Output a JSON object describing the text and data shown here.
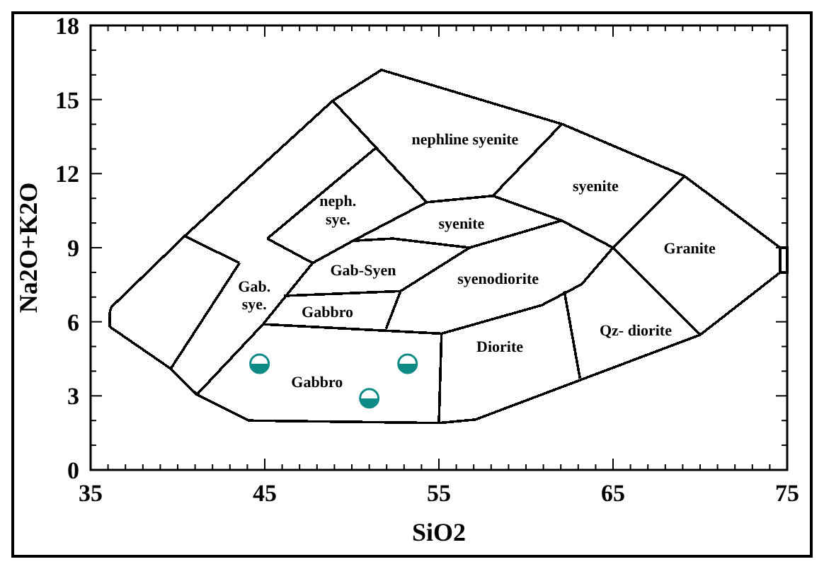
{
  "chart_data": {
    "type": "scatter",
    "xlabel": "SiO2",
    "ylabel": "Na2O+K2O",
    "xlim": [
      35,
      75
    ],
    "ylim": [
      0,
      18
    ],
    "xticks": [
      35,
      {
        "value": 36,
        "label": null
      },
      {
        "value": 37,
        "label": null
      },
      {
        "value": 38,
        "label": null
      },
      {
        "value": 39,
        "label": null
      },
      {
        "value": 40,
        "label": null
      },
      {
        "value": 41,
        "label": null
      },
      {
        "value": 42,
        "label": null
      },
      {
        "value": 43,
        "label": null
      },
      {
        "value": 44,
        "label": null
      },
      45,
      {
        "value": 46,
        "label": null
      },
      {
        "value": 47,
        "label": null
      },
      {
        "value": 48,
        "label": null
      },
      {
        "value": 49,
        "label": null
      },
      {
        "value": 50,
        "label": null
      },
      {
        "value": 51,
        "label": null
      },
      {
        "value": 52,
        "label": null
      },
      {
        "value": 53,
        "label": null
      },
      {
        "value": 54,
        "label": null
      },
      55,
      {
        "value": 56,
        "label": null
      },
      {
        "value": 57,
        "label": null
      },
      {
        "value": 58,
        "label": null
      },
      {
        "value": 59,
        "label": null
      },
      {
        "value": 60,
        "label": null
      },
      {
        "value": 61,
        "label": null
      },
      {
        "value": 62,
        "label": null
      },
      {
        "value": 63,
        "label": null
      },
      {
        "value": 64,
        "label": null
      },
      65,
      {
        "value": 66,
        "label": null
      },
      {
        "value": 67,
        "label": null
      },
      {
        "value": 68,
        "label": null
      },
      {
        "value": 69,
        "label": null
      },
      {
        "value": 70,
        "label": null
      },
      {
        "value": 71,
        "label": null
      },
      {
        "value": 72,
        "label": null
      },
      {
        "value": 73,
        "label": null
      },
      {
        "value": 74,
        "label": null
      },
      75
    ],
    "yticks": [
      0,
      {
        "value": 1,
        "label": null
      },
      {
        "value": 2,
        "label": null
      },
      3,
      {
        "value": 4,
        "label": null
      },
      {
        "value": 5,
        "label": null
      },
      6,
      {
        "value": 7,
        "label": null
      },
      {
        "value": 8,
        "label": null
      },
      9,
      {
        "value": 10,
        "label": null
      },
      {
        "value": 11,
        "label": null
      },
      12,
      {
        "value": 13,
        "label": null
      },
      {
        "value": 14,
        "label": null
      },
      15,
      {
        "value": 16,
        "label": null
      },
      {
        "value": 17,
        "label": null
      },
      18
    ],
    "grid": false,
    "marker": "circle",
    "series": [
      {
        "type": "line",
        "color": "#000000",
        "marker": "none",
        "x": [
          36.1,
          36.2,
          40.4,
          48.9,
          51.7,
          62.1,
          69.1,
          74.6
        ],
        "values": [
          6.4,
          6.6,
          9.47,
          14.95,
          16.2,
          14.0,
          11.9,
          9.0
        ]
      },
      {
        "type": "line",
        "color": "#000000",
        "marker": "none",
        "x": [
          36.1,
          39.6,
          41.1,
          44.1,
          55.0,
          57.1,
          70.0,
          74.6
        ],
        "values": [
          5.8,
          4.1,
          3.05,
          2.0,
          1.9,
          2.04,
          5.47,
          8.0
        ]
      },
      {
        "type": "line",
        "color": "#000000",
        "marker": "none",
        "x": [
          40.4,
          43.55
        ],
        "values": [
          9.47,
          8.38
        ]
      },
      {
        "type": "line",
        "color": "#000000",
        "marker": "none",
        "x": [
          39.6,
          43.55
        ],
        "values": [
          4.1,
          8.38
        ]
      },
      {
        "type": "line",
        "color": "#000000",
        "marker": "none",
        "x": [
          41.1,
          44.9,
          47.75,
          50.07,
          52.35,
          56.76
        ],
        "values": [
          3.05,
          5.9,
          8.38,
          9.28,
          9.37,
          9.0
        ]
      },
      {
        "type": "line",
        "color": "#000000",
        "marker": "none",
        "x": [
          45.14,
          47.75
        ],
        "values": [
          9.37,
          8.38
        ]
      },
      {
        "type": "line",
        "color": "#000000",
        "marker": "none",
        "x": [
          45.14,
          51.4
        ],
        "values": [
          9.37,
          13.05
        ]
      },
      {
        "type": "line",
        "color": "#000000",
        "marker": "none",
        "x": [
          48.9,
          54.3,
          58.1,
          62.05
        ],
        "values": [
          14.95,
          10.84,
          11.1,
          14.0
        ]
      },
      {
        "type": "line",
        "color": "#000000",
        "marker": "none",
        "x": [
          58.1,
          62.05,
          65.0,
          69.1
        ],
        "values": [
          11.1,
          10.1,
          9.0,
          11.9
        ]
      },
      {
        "type": "line",
        "color": "#000000",
        "marker": "none",
        "x": [
          44.9,
          55.15,
          60.9,
          63.2,
          65.0,
          70.0
        ],
        "values": [
          5.9,
          5.52,
          6.67,
          7.52,
          9.0,
          5.47
        ]
      },
      {
        "type": "line",
        "color": "#000000",
        "marker": "none",
        "x": [
          55.0,
          55.15
        ],
        "values": [
          1.9,
          5.52
        ]
      },
      {
        "type": "line",
        "color": "#000000",
        "marker": "none",
        "x": [
          62.2,
          63.1
        ],
        "values": [
          7.24,
          3.71
        ]
      },
      {
        "type": "line",
        "color": "#000000",
        "marker": "none",
        "x": [
          46.1,
          52.8,
          56.76,
          62.05
        ],
        "values": [
          7.05,
          7.24,
          9.0,
          10.1
        ]
      },
      {
        "type": "line",
        "color": "#000000",
        "marker": "none",
        "x": [
          51.96,
          52.8
        ],
        "values": [
          5.71,
          7.24
        ]
      },
      {
        "type": "line",
        "color": "#000000",
        "marker": "none",
        "x": [
          50.07,
          54.3
        ],
        "values": [
          9.28,
          10.84
        ]
      },
      {
        "color": "#0e8a87",
        "x": [
          44.7,
          51.0,
          53.2
        ],
        "values": [
          4.3,
          2.9,
          4.3
        ]
      }
    ],
    "annotations": [
      "nephline syenite",
      "neph.\nsye.",
      "syenite",
      "syenite",
      "Granite",
      "Gab-Syen",
      "syenodiorite",
      "Gab.\nsye.",
      "Gabbro",
      "Gabbro",
      "Diorite",
      "Qz- diorite"
    ]
  }
}
